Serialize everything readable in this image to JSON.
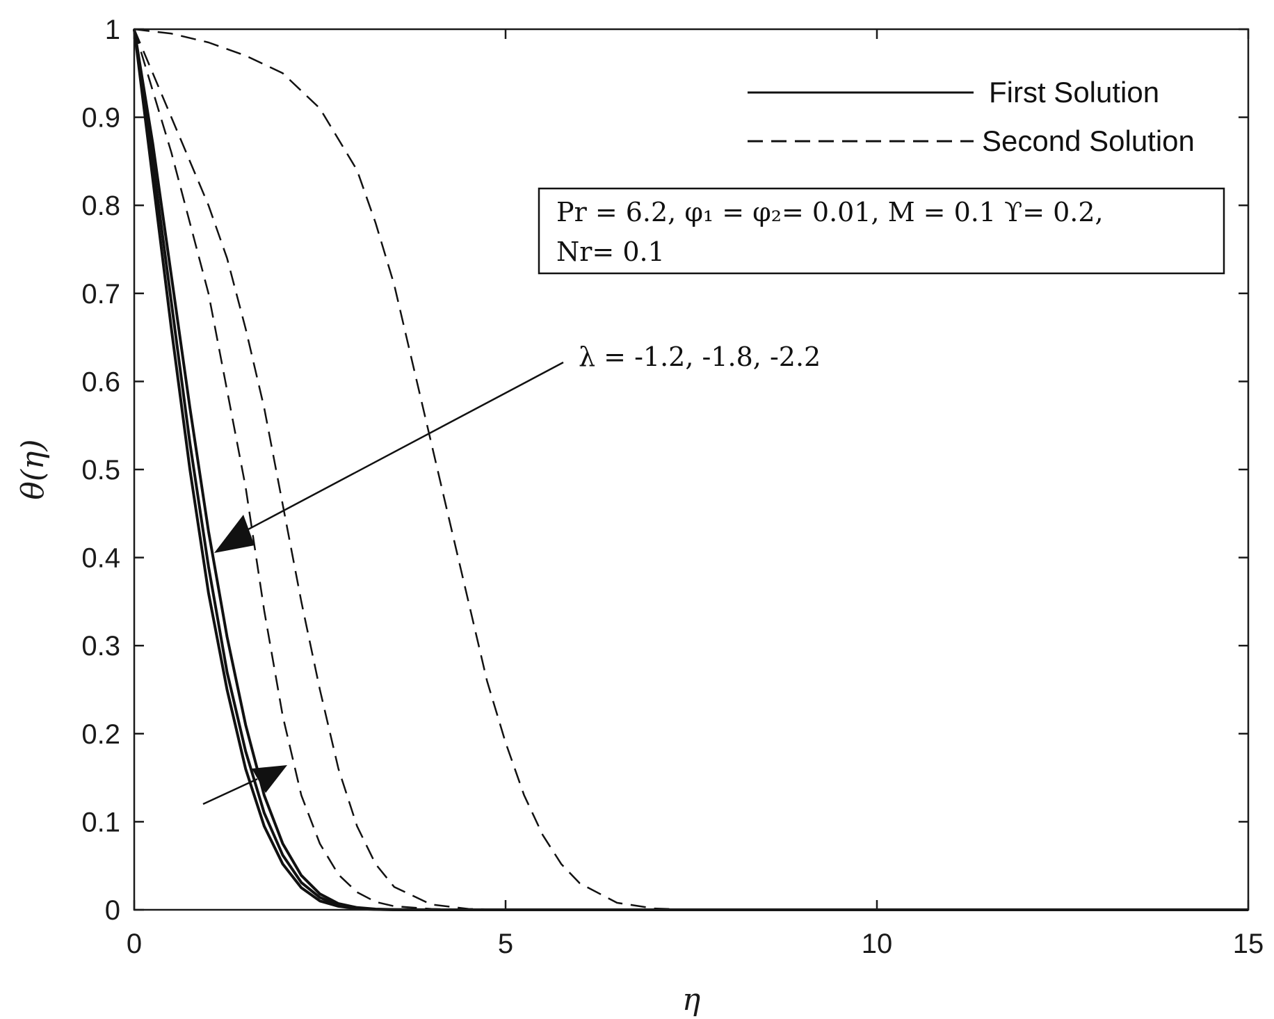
{
  "chart_data": {
    "type": "line",
    "title": "",
    "xlabel": "η",
    "ylabel": "θ(η)",
    "xlim": [
      0,
      15
    ],
    "ylim": [
      0,
      1
    ],
    "x_ticks": [
      "0",
      "5",
      "10",
      "15"
    ],
    "y_ticks": [
      "0",
      "0.1",
      "0.2",
      "0.3",
      "0.4",
      "0.5",
      "0.6",
      "0.7",
      "0.8",
      "0.9",
      "1"
    ],
    "grid": false,
    "legend": {
      "placement": "top-right",
      "entries": [
        {
          "label": "First Solution",
          "style": "solid"
        },
        {
          "label": "Second Solution",
          "style": "dashed"
        }
      ]
    },
    "params_box": {
      "line1": "Pr = 6.2, φ₁ = φ₂= 0.01, M = 0.1 ϒ= 0.2,",
      "line2": "Nr= 0.1"
    },
    "annotation": "λ = -1.2, -1.8, -2.2",
    "series": [
      {
        "style": "solid",
        "x": [
          0,
          0.25,
          0.5,
          0.75,
          1.0,
          1.25,
          1.5,
          1.75,
          2.0,
          2.25,
          2.5,
          2.75,
          3.0,
          3.25,
          3.5,
          4.0,
          5.0,
          15.0
        ],
        "y": [
          1.0,
          0.83,
          0.66,
          0.5,
          0.36,
          0.25,
          0.16,
          0.095,
          0.052,
          0.025,
          0.01,
          0.004,
          0.0013,
          0.0004,
          0.0001,
          0.0,
          0.0,
          0.0
        ]
      },
      {
        "style": "solid",
        "x": [
          0,
          0.25,
          0.5,
          0.75,
          1.0,
          1.25,
          1.5,
          1.75,
          2.0,
          2.25,
          2.5,
          2.75,
          3.0,
          3.25,
          3.5,
          4.0,
          5.0,
          15.0
        ],
        "y": [
          1.0,
          0.85,
          0.69,
          0.53,
          0.39,
          0.27,
          0.18,
          0.11,
          0.062,
          0.031,
          0.014,
          0.005,
          0.0017,
          0.0005,
          0.0001,
          0.0,
          0.0,
          0.0
        ]
      },
      {
        "style": "solid",
        "x": [
          0,
          0.25,
          0.5,
          0.75,
          1.0,
          1.25,
          1.5,
          1.75,
          2.0,
          2.25,
          2.5,
          2.75,
          3.0,
          3.25,
          3.5,
          4.0,
          5.0,
          15.0
        ],
        "y": [
          1.0,
          0.87,
          0.72,
          0.57,
          0.43,
          0.31,
          0.21,
          0.13,
          0.075,
          0.039,
          0.018,
          0.007,
          0.0025,
          0.0008,
          0.0002,
          0.0,
          0.0,
          0.0
        ]
      },
      {
        "style": "dashed",
        "x": [
          0,
          0.5,
          1.0,
          1.5,
          1.75,
          2.0,
          2.25,
          2.5,
          2.75,
          3.0,
          3.25,
          3.5,
          4.0,
          4.5,
          5.0,
          15.0
        ],
        "y": [
          1.0,
          0.86,
          0.7,
          0.48,
          0.34,
          0.22,
          0.13,
          0.075,
          0.04,
          0.02,
          0.009,
          0.004,
          0.001,
          0.0002,
          0.0,
          0.0
        ]
      },
      {
        "style": "dashed",
        "x": [
          0,
          0.5,
          1.0,
          1.25,
          1.5,
          1.75,
          2.0,
          2.25,
          2.5,
          2.75,
          3.0,
          3.25,
          3.5,
          4.0,
          4.5,
          5.0,
          15.0
        ],
        "y": [
          1.0,
          0.9,
          0.8,
          0.74,
          0.66,
          0.57,
          0.46,
          0.35,
          0.25,
          0.16,
          0.095,
          0.052,
          0.026,
          0.006,
          0.001,
          0.0,
          0.0
        ]
      },
      {
        "style": "dashed",
        "x": [
          0,
          0.5,
          1.0,
          1.5,
          2.0,
          2.5,
          3.0,
          3.25,
          3.5,
          3.75,
          4.0,
          4.25,
          4.5,
          4.75,
          5.0,
          5.25,
          5.5,
          5.75,
          6.0,
          6.5,
          7.0,
          7.5,
          15.0
        ],
        "y": [
          1.0,
          0.995,
          0.985,
          0.97,
          0.95,
          0.91,
          0.84,
          0.78,
          0.71,
          0.62,
          0.53,
          0.44,
          0.35,
          0.26,
          0.19,
          0.13,
          0.085,
          0.052,
          0.03,
          0.008,
          0.0015,
          0.0,
          0.0
        ]
      }
    ]
  }
}
